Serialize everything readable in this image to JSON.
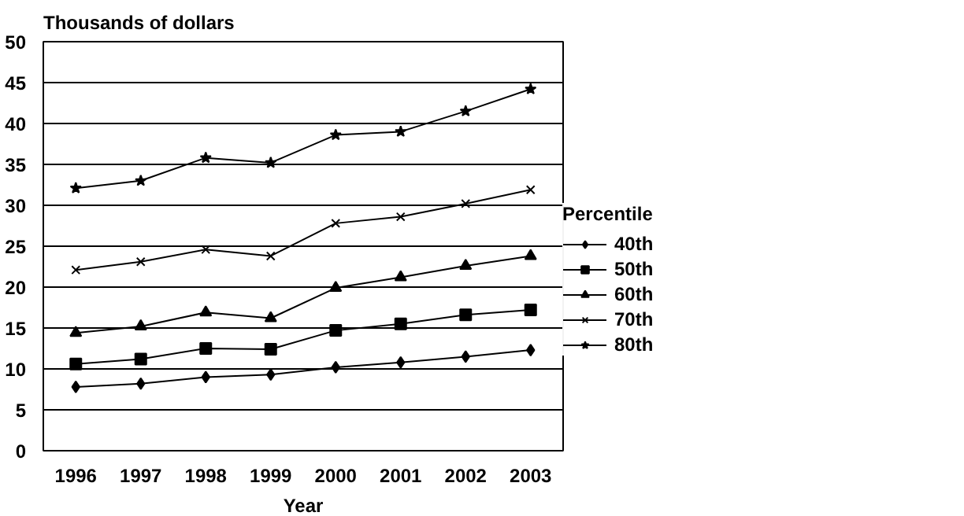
{
  "chart_data": {
    "type": "line",
    "ylabel": "Thousands of dollars",
    "xlabel": "Year",
    "legend_title": "Percentile",
    "categories": [
      "1996",
      "1997",
      "1998",
      "1999",
      "2000",
      "2001",
      "2002",
      "2003"
    ],
    "ylim": [
      0,
      50
    ],
    "yticks": [
      0,
      5,
      10,
      15,
      20,
      25,
      30,
      35,
      40,
      45,
      50
    ],
    "grid": "y",
    "legend": "right",
    "line_style": "solid",
    "series": [
      {
        "name": "40th",
        "color": "#000000",
        "marker": "diamond",
        "values": [
          7.8,
          8.2,
          9.0,
          9.3,
          10.2,
          10.8,
          11.5,
          12.3
        ]
      },
      {
        "name": "50th",
        "color": "#000000",
        "marker": "square",
        "values": [
          10.6,
          11.2,
          12.5,
          12.4,
          14.7,
          15.5,
          16.6,
          17.2
        ]
      },
      {
        "name": "60th",
        "color": "#000000",
        "marker": "triangle",
        "values": [
          14.4,
          15.2,
          16.9,
          16.2,
          19.9,
          21.2,
          22.6,
          23.8
        ]
      },
      {
        "name": "70th",
        "color": "#000000",
        "marker": "cross",
        "values": [
          22.1,
          23.1,
          24.6,
          23.8,
          27.8,
          28.6,
          30.2,
          31.9
        ]
      },
      {
        "name": "80th",
        "color": "#000000",
        "marker": "star",
        "values": [
          32.1,
          33.0,
          35.8,
          35.2,
          38.6,
          39.0,
          41.5,
          44.2
        ]
      }
    ]
  }
}
